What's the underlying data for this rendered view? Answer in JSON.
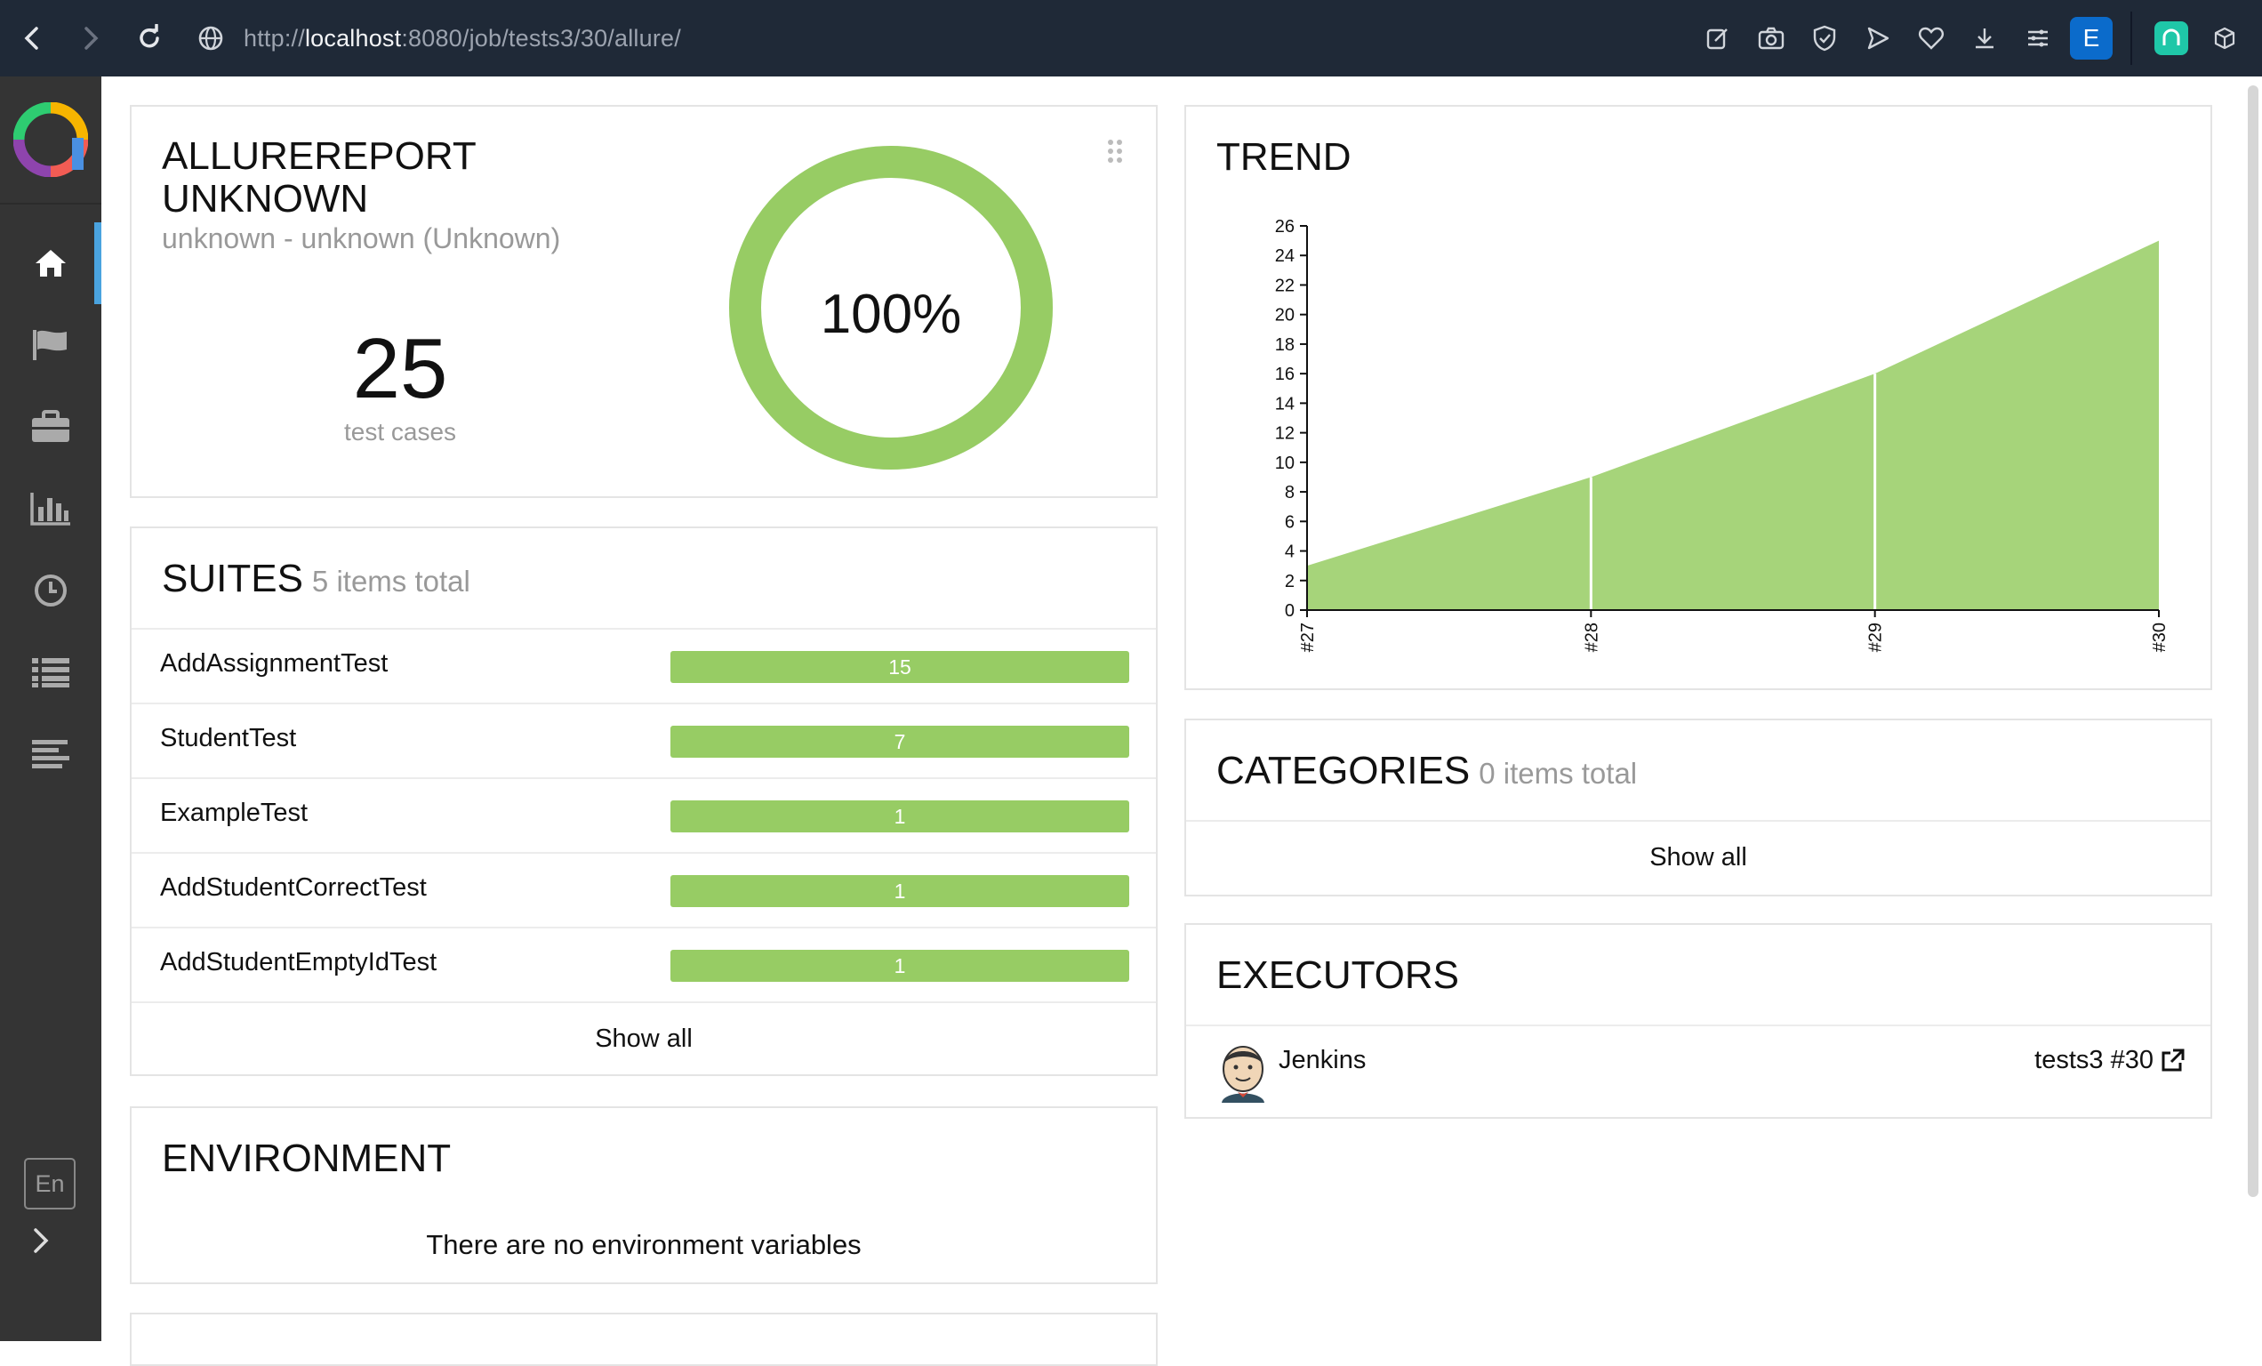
{
  "browser": {
    "url_prefix": "http://",
    "url_host": "localhost",
    "url_rest": ":8080/job/tests3/30/allure/",
    "profile_letter": "E"
  },
  "sidebar": {
    "items": [
      {
        "icon": "home-icon",
        "active": true
      },
      {
        "icon": "flag-icon"
      },
      {
        "icon": "briefcase-icon"
      },
      {
        "icon": "bar-chart-icon"
      },
      {
        "icon": "clock-icon"
      },
      {
        "icon": "list-icon"
      },
      {
        "icon": "timeline-icon"
      }
    ],
    "language": "En"
  },
  "summary": {
    "title_line1": "ALLUREREPORT",
    "title_line2": "UNKNOWN",
    "subtitle": "unknown - unknown (Unknown)",
    "count": "25",
    "count_label": "test cases",
    "percent": "100%",
    "passed_fraction": 1.0,
    "color": "#97cc64"
  },
  "suites": {
    "title": "SUITES",
    "subtitle": "5 items total",
    "items": [
      {
        "name": "AddAssignmentTest",
        "count": "15"
      },
      {
        "name": "StudentTest",
        "count": "7"
      },
      {
        "name": "ExampleTest",
        "count": "1"
      },
      {
        "name": "AddStudentCorrectTest",
        "count": "1"
      },
      {
        "name": "AddStudentEmptyIdTest",
        "count": "1"
      }
    ],
    "show_all": "Show all"
  },
  "environment": {
    "title": "ENVIRONMENT",
    "empty_message": "There are no environment variables"
  },
  "trend": {
    "title": "TREND"
  },
  "chart_data": {
    "type": "area",
    "categories": [
      "#27",
      "#28",
      "#29",
      "#30"
    ],
    "series": [
      {
        "values": [
          3,
          9,
          16,
          25
        ],
        "color": "#97cc64"
      }
    ],
    "yticks": [
      "0",
      "2",
      "4",
      "6",
      "8",
      "10",
      "12",
      "14",
      "16",
      "18",
      "20",
      "22",
      "24",
      "26"
    ],
    "ylim": [
      0,
      26
    ],
    "grid": false
  },
  "categories": {
    "title": "CATEGORIES",
    "subtitle": "0 items total",
    "show_all": "Show all"
  },
  "executors": {
    "title": "EXECUTORS",
    "name": "Jenkins",
    "build": "tests3 #30"
  }
}
